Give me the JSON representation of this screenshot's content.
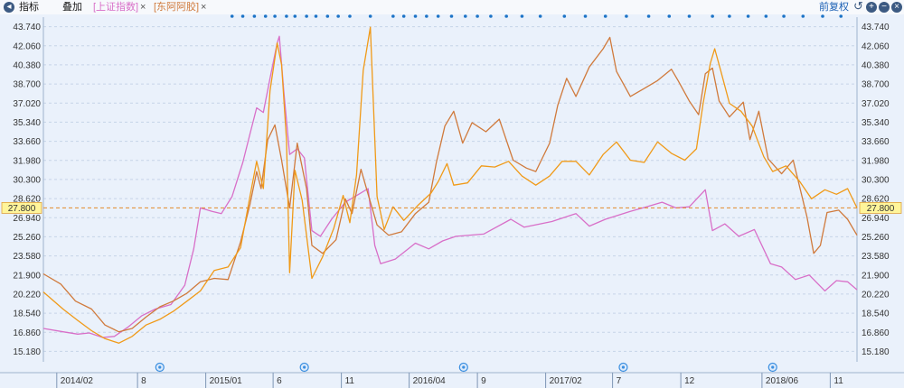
{
  "toolbar": {
    "indicator_label": "指标",
    "overlay_label": "叠加",
    "overlay_shanghai": "[上证指数]",
    "overlay_dongeejiao": "[东阿阿胶]",
    "close_glyph": "×",
    "adjust_label": "前复权",
    "colors": {
      "shanghai": "#d86fc8",
      "dongeejiao": "#d07a3c",
      "main": "#f09a18"
    }
  },
  "chart_data": {
    "type": "line",
    "title": "",
    "xlabel": "",
    "ylabel": "",
    "ylim": [
      14.34,
      44.58
    ],
    "grid": true,
    "reference_line": {
      "value": 27.8,
      "label": "27.800"
    },
    "y_ticks": [
      15.18,
      16.86,
      18.54,
      20.22,
      21.9,
      23.58,
      25.26,
      26.94,
      28.62,
      30.3,
      31.98,
      33.66,
      35.34,
      37.02,
      38.7,
      40.38,
      42.06,
      43.74
    ],
    "y_tick_labels": [
      "15.180",
      "16.860",
      "18.540",
      "20.220",
      "21.900",
      "23.580",
      "25.260",
      "26.940",
      "28.620",
      "30.300",
      "31.980",
      "33.660",
      "35.340",
      "37.020",
      "38.700",
      "40.380",
      "42.060",
      "43.740"
    ],
    "x_range": [
      "2014-01-02",
      "2018-12-31"
    ],
    "x_ticks": [
      {
        "label": "2014/02",
        "date": "2014-02-01"
      },
      {
        "label": "8",
        "date": "2014-08-01"
      },
      {
        "label": "2015/01",
        "date": "2015-01-01"
      },
      {
        "label": "6",
        "date": "2015-06-01"
      },
      {
        "label": "11",
        "date": "2015-11-01"
      },
      {
        "label": "2016/04",
        "date": "2016-04-01"
      },
      {
        "label": "9",
        "date": "2016-09-01"
      },
      {
        "label": "2017/02",
        "date": "2017-02-01"
      },
      {
        "label": "7",
        "date": "2017-07-01"
      },
      {
        "label": "12",
        "date": "2017-12-01"
      },
      {
        "label": "2018/06",
        "date": "2018-06-01"
      },
      {
        "label": "11",
        "date": "2018-11-01"
      }
    ],
    "event_markers": [
      "2014-09-20",
      "2015-08-10",
      "2016-08-01",
      "2017-07-25",
      "2018-06-25"
    ],
    "series": [
      {
        "color": "#d86fc8",
        "points": [
          [
            "2014-01-02",
            17.2
          ],
          [
            "2014-02-15",
            16.9
          ],
          [
            "2014-03-20",
            16.7
          ],
          [
            "2014-04-15",
            16.8
          ],
          [
            "2014-05-15",
            16.4
          ],
          [
            "2014-06-10",
            16.5
          ],
          [
            "2014-07-10",
            17.3
          ],
          [
            "2014-08-10",
            18.3
          ],
          [
            "2014-09-10",
            18.9
          ],
          [
            "2014-10-15",
            19.3
          ],
          [
            "2014-11-15",
            21.0
          ],
          [
            "2014-12-05",
            24.2
          ],
          [
            "2014-12-20",
            27.8
          ],
          [
            "2015-01-15",
            27.5
          ],
          [
            "2015-02-05",
            27.3
          ],
          [
            "2015-03-01",
            28.8
          ],
          [
            "2015-03-25",
            31.8
          ],
          [
            "2015-04-10",
            34.3
          ],
          [
            "2015-04-25",
            36.6
          ],
          [
            "2015-05-10",
            36.2
          ],
          [
            "2015-05-25",
            39.2
          ],
          [
            "2015-06-10",
            42.3
          ],
          [
            "2015-06-15",
            42.9
          ],
          [
            "2015-06-25",
            38.0
          ],
          [
            "2015-07-08",
            32.5
          ],
          [
            "2015-07-25",
            33.0
          ],
          [
            "2015-08-10",
            32.2
          ],
          [
            "2015-08-27",
            25.8
          ],
          [
            "2015-09-15",
            25.3
          ],
          [
            "2015-10-10",
            26.8
          ],
          [
            "2015-11-10",
            28.3
          ],
          [
            "2015-12-10",
            29.0
          ],
          [
            "2015-12-31",
            29.5
          ],
          [
            "2016-01-15",
            24.5
          ],
          [
            "2016-01-28",
            22.9
          ],
          [
            "2016-03-01",
            23.3
          ],
          [
            "2016-04-15",
            24.7
          ],
          [
            "2016-05-15",
            24.2
          ],
          [
            "2016-06-15",
            24.9
          ],
          [
            "2016-07-15",
            25.3
          ],
          [
            "2016-09-15",
            25.5
          ],
          [
            "2016-11-15",
            26.8
          ],
          [
            "2016-12-15",
            26.1
          ],
          [
            "2017-02-15",
            26.6
          ],
          [
            "2017-04-10",
            27.3
          ],
          [
            "2017-05-10",
            26.2
          ],
          [
            "2017-06-15",
            26.8
          ],
          [
            "2017-08-10",
            27.5
          ],
          [
            "2017-09-15",
            27.9
          ],
          [
            "2017-10-20",
            28.3
          ],
          [
            "2017-11-20",
            27.8
          ],
          [
            "2017-12-20",
            27.9
          ],
          [
            "2018-01-25",
            29.4
          ],
          [
            "2018-02-10",
            25.8
          ],
          [
            "2018-03-10",
            26.4
          ],
          [
            "2018-04-10",
            25.3
          ],
          [
            "2018-05-15",
            25.9
          ],
          [
            "2018-06-20",
            22.9
          ],
          [
            "2018-07-15",
            22.6
          ],
          [
            "2018-08-15",
            21.5
          ],
          [
            "2018-09-15",
            21.9
          ],
          [
            "2018-10-20",
            20.5
          ],
          [
            "2018-11-15",
            21.4
          ],
          [
            "2018-12-10",
            21.3
          ],
          [
            "2018-12-31",
            20.6
          ]
        ]
      },
      {
        "color": "#d07a3c",
        "points": [
          [
            "2014-01-02",
            22.0
          ],
          [
            "2014-02-10",
            21.1
          ],
          [
            "2014-03-15",
            19.6
          ],
          [
            "2014-04-20",
            18.9
          ],
          [
            "2014-05-20",
            17.5
          ],
          [
            "2014-06-20",
            16.9
          ],
          [
            "2014-07-20",
            17.2
          ],
          [
            "2014-08-20",
            18.2
          ],
          [
            "2014-09-20",
            19.1
          ],
          [
            "2014-10-20",
            19.6
          ],
          [
            "2014-11-20",
            20.3
          ],
          [
            "2014-12-20",
            21.3
          ],
          [
            "2015-01-20",
            21.6
          ],
          [
            "2015-02-20",
            21.5
          ],
          [
            "2015-03-20",
            24.8
          ],
          [
            "2015-04-10",
            28.1
          ],
          [
            "2015-04-25",
            31.0
          ],
          [
            "2015-05-05",
            29.5
          ],
          [
            "2015-05-20",
            33.8
          ],
          [
            "2015-06-05",
            35.1
          ],
          [
            "2015-06-20",
            32.0
          ],
          [
            "2015-07-08",
            27.8
          ],
          [
            "2015-07-25",
            33.5
          ],
          [
            "2015-08-15",
            29.5
          ],
          [
            "2015-08-27",
            24.5
          ],
          [
            "2015-09-20",
            23.8
          ],
          [
            "2015-10-20",
            25.0
          ],
          [
            "2015-11-10",
            28.6
          ],
          [
            "2015-11-25",
            27.3
          ],
          [
            "2015-12-15",
            31.2
          ],
          [
            "2015-12-31",
            29.0
          ],
          [
            "2016-01-20",
            26.3
          ],
          [
            "2016-02-15",
            25.4
          ],
          [
            "2016-03-15",
            25.7
          ],
          [
            "2016-04-15",
            27.3
          ],
          [
            "2016-05-15",
            28.3
          ],
          [
            "2016-06-01",
            31.8
          ],
          [
            "2016-06-20",
            35.0
          ],
          [
            "2016-07-10",
            36.3
          ],
          [
            "2016-07-30",
            33.5
          ],
          [
            "2016-08-20",
            35.3
          ],
          [
            "2016-09-20",
            34.5
          ],
          [
            "2016-10-20",
            35.6
          ],
          [
            "2016-11-20",
            32.0
          ],
          [
            "2016-12-20",
            31.3
          ],
          [
            "2017-01-10",
            31.0
          ],
          [
            "2017-02-10",
            33.5
          ],
          [
            "2017-02-28",
            36.8
          ],
          [
            "2017-03-20",
            39.2
          ],
          [
            "2017-04-10",
            37.6
          ],
          [
            "2017-05-10",
            40.2
          ],
          [
            "2017-06-10",
            41.8
          ],
          [
            "2017-06-25",
            42.8
          ],
          [
            "2017-07-10",
            39.8
          ],
          [
            "2017-08-10",
            37.6
          ],
          [
            "2017-09-10",
            38.3
          ],
          [
            "2017-10-10",
            39.0
          ],
          [
            "2017-11-10",
            40.0
          ],
          [
            "2017-11-25",
            39.0
          ],
          [
            "2017-12-20",
            37.2
          ],
          [
            "2018-01-10",
            36.0
          ],
          [
            "2018-01-25",
            39.6
          ],
          [
            "2018-02-10",
            40.1
          ],
          [
            "2018-02-25",
            37.2
          ],
          [
            "2018-03-20",
            35.8
          ],
          [
            "2018-04-20",
            37.1
          ],
          [
            "2018-05-05",
            33.8
          ],
          [
            "2018-05-25",
            36.3
          ],
          [
            "2018-06-15",
            32.1
          ],
          [
            "2018-07-15",
            30.8
          ],
          [
            "2018-08-10",
            32.0
          ],
          [
            "2018-09-10",
            27.0
          ],
          [
            "2018-09-25",
            23.8
          ],
          [
            "2018-10-10",
            24.5
          ],
          [
            "2018-10-25",
            27.4
          ],
          [
            "2018-11-20",
            27.6
          ],
          [
            "2018-12-10",
            26.8
          ],
          [
            "2018-12-31",
            25.4
          ]
        ]
      },
      {
        "color": "#f09a18",
        "points": [
          [
            "2014-01-02",
            20.4
          ],
          [
            "2014-02-15",
            18.9
          ],
          [
            "2014-03-20",
            17.9
          ],
          [
            "2014-04-20",
            17.0
          ],
          [
            "2014-05-20",
            16.3
          ],
          [
            "2014-06-20",
            15.9
          ],
          [
            "2014-07-20",
            16.5
          ],
          [
            "2014-08-20",
            17.5
          ],
          [
            "2014-09-20",
            18.0
          ],
          [
            "2014-10-20",
            18.7
          ],
          [
            "2014-11-20",
            19.6
          ],
          [
            "2014-12-20",
            20.5
          ],
          [
            "2015-01-20",
            22.3
          ],
          [
            "2015-02-20",
            22.6
          ],
          [
            "2015-03-20",
            24.3
          ],
          [
            "2015-04-10",
            28.8
          ],
          [
            "2015-04-25",
            31.9
          ],
          [
            "2015-05-10",
            29.5
          ],
          [
            "2015-05-25",
            38.1
          ],
          [
            "2015-06-10",
            42.3
          ],
          [
            "2015-06-20",
            40.4
          ],
          [
            "2015-07-01",
            33.8
          ],
          [
            "2015-07-08",
            22.1
          ],
          [
            "2015-07-20",
            31.1
          ],
          [
            "2015-08-05",
            28.5
          ],
          [
            "2015-08-27",
            21.6
          ],
          [
            "2015-09-20",
            23.5
          ],
          [
            "2015-10-15",
            26.0
          ],
          [
            "2015-11-05",
            28.9
          ],
          [
            "2015-11-20",
            26.5
          ],
          [
            "2015-12-05",
            30.7
          ],
          [
            "2015-12-20",
            39.9
          ],
          [
            "2016-01-05",
            43.7
          ],
          [
            "2016-01-20",
            28.8
          ],
          [
            "2016-02-05",
            25.9
          ],
          [
            "2016-02-25",
            27.9
          ],
          [
            "2016-03-20",
            26.7
          ],
          [
            "2016-04-20",
            28.0
          ],
          [
            "2016-05-20",
            29.1
          ],
          [
            "2016-06-05",
            30.1
          ],
          [
            "2016-06-25",
            31.7
          ],
          [
            "2016-07-10",
            29.8
          ],
          [
            "2016-08-10",
            30.0
          ],
          [
            "2016-09-10",
            31.5
          ],
          [
            "2016-10-10",
            31.4
          ],
          [
            "2016-11-10",
            31.9
          ],
          [
            "2016-12-10",
            30.6
          ],
          [
            "2017-01-10",
            29.8
          ],
          [
            "2017-02-10",
            30.6
          ],
          [
            "2017-03-10",
            31.9
          ],
          [
            "2017-04-10",
            31.9
          ],
          [
            "2017-05-10",
            30.7
          ],
          [
            "2017-06-10",
            32.5
          ],
          [
            "2017-07-10",
            33.6
          ],
          [
            "2017-08-10",
            32.0
          ],
          [
            "2017-09-10",
            31.8
          ],
          [
            "2017-10-10",
            33.6
          ],
          [
            "2017-11-10",
            32.6
          ],
          [
            "2017-12-10",
            32.0
          ],
          [
            "2018-01-05",
            33.0
          ],
          [
            "2018-01-20",
            37.0
          ],
          [
            "2018-02-05",
            40.5
          ],
          [
            "2018-02-15",
            41.8
          ],
          [
            "2018-03-01",
            39.8
          ],
          [
            "2018-03-20",
            37.0
          ],
          [
            "2018-04-15",
            36.3
          ],
          [
            "2018-05-10",
            35.0
          ],
          [
            "2018-06-05",
            32.3
          ],
          [
            "2018-06-25",
            31.0
          ],
          [
            "2018-07-25",
            31.5
          ],
          [
            "2018-08-25",
            30.1
          ],
          [
            "2018-09-20",
            28.6
          ],
          [
            "2018-10-20",
            29.4
          ],
          [
            "2018-11-15",
            29.0
          ],
          [
            "2018-12-10",
            29.5
          ],
          [
            "2018-12-31",
            27.8
          ]
        ]
      }
    ]
  }
}
